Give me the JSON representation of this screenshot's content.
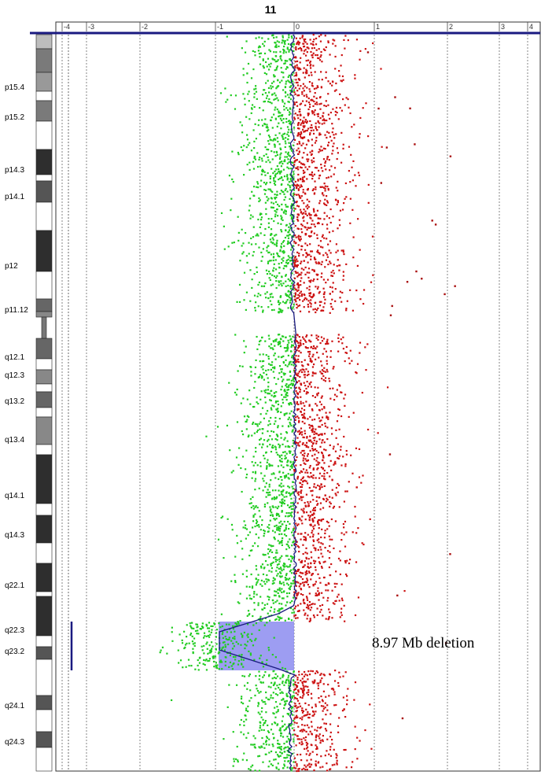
{
  "chart_data": {
    "type": "scatter",
    "title": "11",
    "x_ticks": [
      -4,
      -3,
      -2,
      -1,
      0,
      1,
      2,
      3,
      4
    ],
    "xlim": [
      -4,
      4
    ],
    "grid": "vertical dotted",
    "ideogram_bands": [
      {
        "label": "p15.4",
        "stain": "gneg"
      },
      {
        "label": "p15.2",
        "stain": "gpos"
      },
      {
        "label": "p14.3",
        "stain": "gpos"
      },
      {
        "label": "p14.1",
        "stain": "gpos"
      },
      {
        "label": "p12",
        "stain": "gpos"
      },
      {
        "label": "p11.12",
        "stain": "gpos"
      },
      {
        "label": "q12.1",
        "stain": "gpos"
      },
      {
        "label": "q12.3",
        "stain": "gpos"
      },
      {
        "label": "q13.2",
        "stain": "gpos"
      },
      {
        "label": "q13.4",
        "stain": "gpos"
      },
      {
        "label": "q14.1",
        "stain": "gpos"
      },
      {
        "label": "q14.3",
        "stain": "gpos"
      },
      {
        "label": "q22.1",
        "stain": "gpos"
      },
      {
        "label": "q22.3",
        "stain": "gpos"
      },
      {
        "label": "q23.2",
        "stain": "gpos"
      },
      {
        "label": "q24.1",
        "stain": "gpos"
      },
      {
        "label": "q24.3",
        "stain": "gpos"
      }
    ],
    "series": [
      {
        "color": "#22cc22",
        "side": "negative log2 ratio"
      },
      {
        "color": "#cc1111",
        "side": "positive log2 ratio"
      },
      {
        "color": "#1a1a80",
        "kind": "moving average"
      }
    ],
    "deletion_region": {
      "x_range": [
        -1.0,
        0.0
      ],
      "band_span": [
        "q22.3",
        "q23.2"
      ],
      "highlight_color": "#9999ee",
      "label": "8.97 Mb deletion"
    }
  },
  "colors": {
    "axis": "#1a1a80",
    "gain_points": "#cc1111",
    "loss_points": "#22cc22",
    "trend_line": "#1a1a80"
  }
}
